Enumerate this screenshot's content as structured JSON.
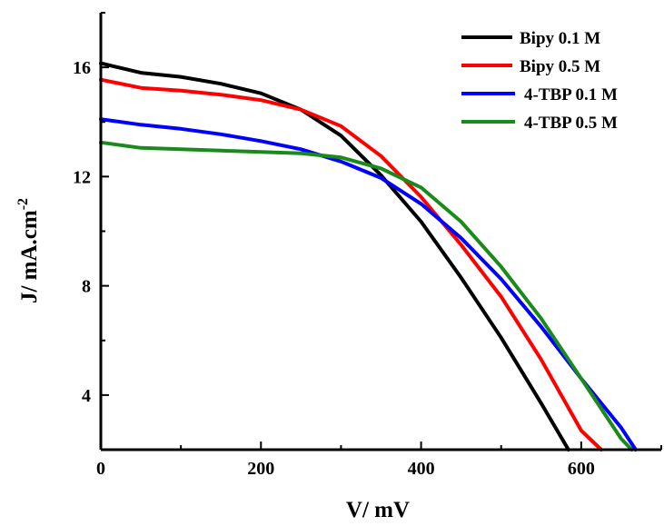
{
  "chart_data": {
    "type": "line",
    "title": "",
    "xlabel": "V/ mV",
    "ylabel_main": "J/ mA.cm",
    "ylabel_sup": "-2",
    "xlim": [
      0,
      700
    ],
    "ylim": [
      2,
      18
    ],
    "xticks": [
      0,
      200,
      400,
      600
    ],
    "yticks": [
      4,
      8,
      12,
      16
    ],
    "grid": false,
    "legend_position": "top-right",
    "series": [
      {
        "name": "Bipy 0.1 M",
        "color": "#000000",
        "x": [
          0,
          50,
          100,
          150,
          200,
          250,
          300,
          350,
          400,
          450,
          500,
          550,
          584
        ],
        "y": [
          16.15,
          15.8,
          15.65,
          15.4,
          15.05,
          14.45,
          13.5,
          12.05,
          10.35,
          8.3,
          6.1,
          3.7,
          2.0
        ]
      },
      {
        "name": "Bipy 0.5 M",
        "color": "#ff0000",
        "x": [
          0,
          50,
          100,
          150,
          200,
          250,
          300,
          350,
          400,
          450,
          500,
          550,
          600,
          625
        ],
        "y": [
          15.55,
          15.25,
          15.15,
          15.0,
          14.8,
          14.45,
          13.85,
          12.75,
          11.25,
          9.5,
          7.6,
          5.3,
          2.7,
          2.0
        ]
      },
      {
        "name": "4-TBP 0.1 M",
        "color": "#0000ff",
        "x": [
          0,
          50,
          100,
          150,
          200,
          250,
          300,
          350,
          400,
          450,
          500,
          550,
          600,
          650,
          668
        ],
        "y": [
          14.1,
          13.9,
          13.75,
          13.55,
          13.3,
          13.0,
          12.55,
          11.95,
          11.0,
          9.75,
          8.25,
          6.5,
          4.6,
          2.8,
          2.0
        ]
      },
      {
        "name": "4-TBP 0.5 M",
        "color": "#1a8a1a",
        "x": [
          0,
          50,
          100,
          150,
          200,
          250,
          300,
          350,
          400,
          450,
          500,
          550,
          600,
          650,
          663
        ],
        "y": [
          13.25,
          13.05,
          13.0,
          12.95,
          12.9,
          12.85,
          12.7,
          12.3,
          11.6,
          10.35,
          8.7,
          6.8,
          4.6,
          2.4,
          2.0
        ]
      }
    ]
  }
}
